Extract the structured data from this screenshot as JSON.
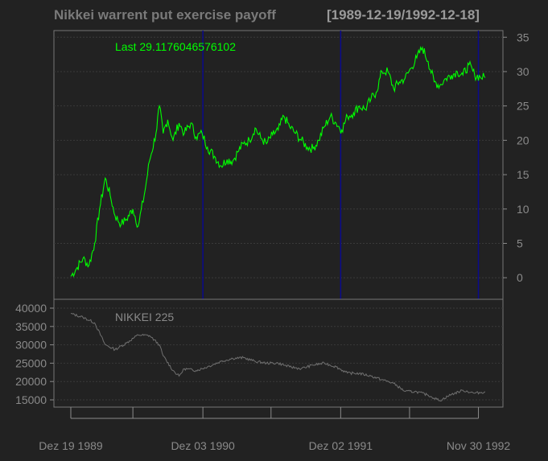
{
  "header": {
    "title": "Nikkei warrent put exercise payoff",
    "date_range": "[1989-12-19/1992-12-18]"
  },
  "colors": {
    "background": "#222222",
    "grid": "#3a3a3a",
    "axis": "#8a8a8a",
    "payoff_line": "#00ff00",
    "nikkei_line": "#707070",
    "vline": "#0a0a8c"
  },
  "chart_data": [
    {
      "type": "line",
      "panel": "main",
      "annotation": "Last 29.1176046576102",
      "ylim": [
        -1.5,
        35.5
      ],
      "yticks": [
        "0",
        "5",
        "10",
        "15",
        "20",
        "25",
        "30",
        "35"
      ],
      "grid": true,
      "x_range": [
        "1989-12-19",
        "1992-12-18"
      ],
      "vertical_lines": [
        "1990-12-03",
        "1991-12-02",
        "1992-11-30"
      ],
      "series": [
        {
          "x": [
            "1989-12-19",
            "1990-01-05",
            "1990-01-20",
            "1990-02-05",
            "1990-02-20",
            "1990-03-05",
            "1990-03-20",
            "1990-04-02",
            "1990-04-15",
            "1990-05-01",
            "1990-05-15",
            "1990-06-01",
            "1990-06-15",
            "1990-07-01",
            "1990-07-15",
            "1990-08-01",
            "1990-08-10",
            "1990-08-20",
            "1990-09-01",
            "1990-09-15",
            "1990-10-01",
            "1990-10-15",
            "1990-11-01",
            "1990-11-15",
            "1990-12-01",
            "1990-12-15",
            "1991-01-05",
            "1991-01-20",
            "1991-02-05",
            "1991-02-20",
            "1991-03-05",
            "1991-03-20",
            "1991-04-05",
            "1991-04-20",
            "1991-05-05",
            "1991-05-20",
            "1991-06-05",
            "1991-06-20",
            "1991-07-05",
            "1991-07-20",
            "1991-08-05",
            "1991-08-20",
            "1991-09-05",
            "1991-09-20",
            "1991-10-05",
            "1991-10-20",
            "1991-11-05",
            "1991-11-20",
            "1991-12-05",
            "1991-12-20",
            "1992-01-05",
            "1992-01-20",
            "1992-02-05",
            "1992-02-20",
            "1992-03-05",
            "1992-03-20",
            "1992-04-05",
            "1992-04-20",
            "1992-05-05",
            "1992-05-20",
            "1992-06-05",
            "1992-06-20",
            "1992-07-05",
            "1992-07-20",
            "1992-08-05",
            "1992-08-20",
            "1992-09-05",
            "1992-09-20",
            "1992-10-05",
            "1992-10-20",
            "1992-11-05",
            "1992-11-20",
            "1992-12-05",
            "1992-12-18"
          ],
          "y": [
            0.2,
            1.5,
            2.8,
            1.8,
            5.0,
            10.0,
            14.5,
            12.0,
            9.0,
            7.8,
            8.5,
            10.0,
            7.5,
            12.0,
            17.0,
            21.0,
            25.0,
            21.0,
            23.0,
            20.0,
            22.5,
            21.0,
            22.5,
            20.5,
            21.0,
            19.0,
            17.5,
            16.3,
            17.2,
            17.0,
            18.3,
            19.5,
            20.0,
            21.8,
            20.3,
            19.5,
            20.8,
            21.5,
            23.5,
            22.0,
            21.0,
            20.0,
            19.0,
            18.8,
            20.0,
            22.0,
            23.5,
            22.5,
            21.5,
            23.5,
            24.0,
            25.0,
            24.5,
            26.0,
            27.0,
            30.0,
            30.0,
            27.5,
            28.5,
            29.0,
            30.5,
            32.0,
            33.5,
            31.5,
            28.5,
            28.0,
            29.0,
            29.5,
            30.0,
            29.5,
            31.0,
            29.5,
            29.2,
            29.12
          ]
        }
      ]
    },
    {
      "type": "line",
      "panel": "lower",
      "series_label": "NIKKEI 225",
      "ylim": [
        14000,
        40000
      ],
      "yticks": [
        "40000",
        "35000",
        "30000",
        "25000",
        "20000",
        "15000"
      ],
      "grid": true,
      "series": [
        {
          "name": "NIKKEI 225",
          "x": [
            "1989-12-19",
            "1990-01-20",
            "1990-02-20",
            "1990-03-20",
            "1990-04-15",
            "1990-05-15",
            "1990-06-15",
            "1990-07-15",
            "1990-08-10",
            "1990-08-20",
            "1990-09-15",
            "1990-10-01",
            "1990-10-15",
            "1990-11-15",
            "1990-12-15",
            "1991-01-20",
            "1991-02-20",
            "1991-03-20",
            "1991-04-20",
            "1991-05-20",
            "1991-06-20",
            "1991-07-20",
            "1991-08-20",
            "1991-09-20",
            "1991-10-20",
            "1991-11-20",
            "1991-12-20",
            "1992-01-20",
            "1992-02-20",
            "1992-03-20",
            "1992-04-20",
            "1992-05-20",
            "1992-06-20",
            "1992-07-20",
            "1992-08-20",
            "1992-09-20",
            "1992-10-20",
            "1992-11-20",
            "1992-12-18"
          ],
          "y": [
            38500,
            37500,
            36000,
            30000,
            28700,
            30500,
            32700,
            32500,
            30000,
            27000,
            23000,
            21500,
            23500,
            23000,
            24000,
            25500,
            26300,
            26500,
            25500,
            25000,
            25000,
            24000,
            23500,
            24500,
            25000,
            24000,
            22300,
            22200,
            21500,
            20500,
            19500,
            17300,
            17200,
            16300,
            14800,
            16500,
            17600,
            16800,
            17200
          ]
        }
      ]
    }
  ],
  "x_axis": {
    "ticks": [
      "1989-12-19",
      "1990-06-01",
      "1990-12-03",
      "1991-06-01",
      "1991-12-02",
      "1992-06-01",
      "1992-11-30"
    ],
    "labels": [
      "Dez 19 1989",
      "Dez 03 1990",
      "Dez 02 1991",
      "Nov 30 1992"
    ],
    "label_dates": [
      "1989-12-19",
      "1990-12-03",
      "1991-12-02",
      "1992-11-30"
    ]
  }
}
